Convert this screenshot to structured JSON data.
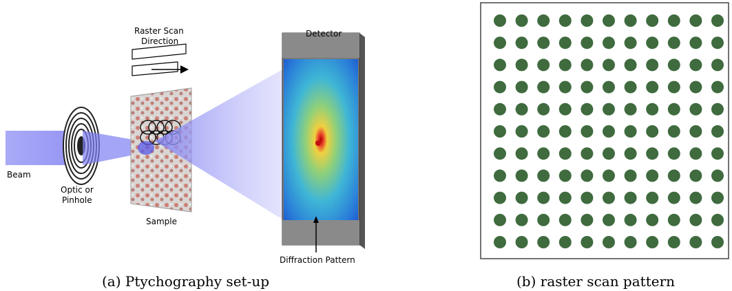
{
  "panel_a": {
    "labels": {
      "raster_scan": "Raster Scan",
      "direction": "Direction",
      "detector": "Detector",
      "beam": "Beam",
      "optic_line1": "Optic or",
      "optic_line2": "Pinhole",
      "sample": "Sample",
      "diffraction_pattern": "Diffraction Pattern"
    },
    "caption": "(a) Ptychography set-up"
  },
  "panel_b": {
    "grid": {
      "rows": 11,
      "cols": 11
    },
    "dot_color": "#3f6b3f",
    "caption": "(b) raster scan pattern"
  },
  "colors": {
    "beam": "#8f8ff5",
    "detector_frame": "#808080",
    "sample_red": "#c0392b"
  }
}
